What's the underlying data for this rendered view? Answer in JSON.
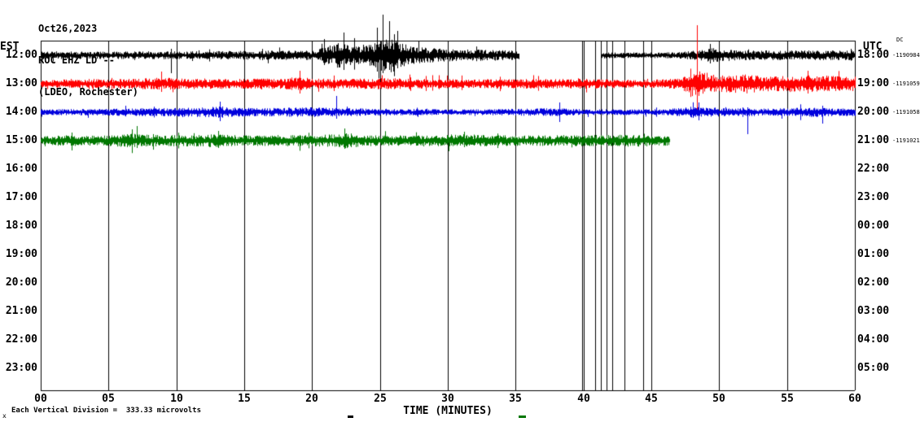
{
  "header": {
    "date": "Oct26,2023",
    "station": "ROC EHZ LD --",
    "location": "(LDEO, Rochester)"
  },
  "axes": {
    "left_label": "EST",
    "right_label": "UTC",
    "left_ticks": [
      "12:00",
      "13:00",
      "14:00",
      "15:00",
      "16:00",
      "17:00",
      "18:00",
      "19:00",
      "20:00",
      "21:00",
      "22:00",
      "23:00"
    ],
    "right_ticks": [
      "18:00",
      "19:00",
      "20:00",
      "21:00",
      "22:00",
      "23:00",
      "00:00",
      "01:00",
      "02:00",
      "03:00",
      "04:00",
      "05:00"
    ],
    "dc_label": "DC",
    "right_annotations": [
      "-1190984",
      "-1191059",
      "-1191058",
      "-1191021"
    ],
    "x_ticks": [
      "00",
      "05",
      "10",
      "15",
      "20",
      "25",
      "30",
      "35",
      "40",
      "45",
      "50",
      "55",
      "60"
    ],
    "x_label": "TIME (MINUTES)"
  },
  "footer": {
    "scale_note": "Each Vertical Division =  333.33 microvolts",
    "corner_mark": "x"
  },
  "colors": {
    "trace_hour_1": "#000000",
    "trace_hour_2": "#ff0000",
    "trace_hour_3": "#0000dd",
    "trace_hour_4": "#007700",
    "grid": "#000000",
    "background": "#ffffff"
  },
  "chart_data": {
    "type": "line",
    "title": "ROC EHZ LD -- (LDEO, Rochester) Oct26,2023 webicorder",
    "xlabel": "TIME (MINUTES)",
    "x_range": [
      0,
      60
    ],
    "minutes_per_row": 60,
    "grid_interval_minutes": 5,
    "scale_note": "Each Vertical Division = 333.33 microvolts",
    "glitch_vlines": {
      "color": "#000000",
      "minutes": [
        39.9,
        40.85,
        41.25,
        41.7,
        42.1,
        43.0,
        44.4
      ]
    },
    "rows": [
      {
        "est": "12:00",
        "utc": "18:00",
        "dc_offset": "-1190984",
        "color": "#000000",
        "seed": 11,
        "segments": [
          {
            "from": 0,
            "to": 35.2
          },
          {
            "from": 41.3,
            "to": 60
          }
        ],
        "envelope": [
          [
            0,
            5
          ],
          [
            4,
            4.5
          ],
          [
            8,
            5
          ],
          [
            12,
            5
          ],
          [
            16,
            5.5
          ],
          [
            20,
            6
          ],
          [
            21,
            10
          ],
          [
            21.8,
            16
          ],
          [
            22.5,
            13
          ],
          [
            23.5,
            11
          ],
          [
            24.5,
            14
          ],
          [
            25,
            20
          ],
          [
            25.8,
            22
          ],
          [
            26.5,
            15
          ],
          [
            27.5,
            11
          ],
          [
            28.5,
            9
          ],
          [
            30,
            8
          ],
          [
            32,
            7
          ],
          [
            34,
            6.5
          ],
          [
            35.2,
            6
          ],
          [
            41.3,
            4
          ],
          [
            43,
            3.5
          ],
          [
            45,
            3.5
          ],
          [
            47,
            4
          ],
          [
            47.8,
            5
          ],
          [
            48.6,
            7
          ],
          [
            49.5,
            9
          ],
          [
            50.5,
            7
          ],
          [
            52,
            6
          ],
          [
            54,
            6
          ],
          [
            56,
            6
          ],
          [
            58,
            6
          ],
          [
            60,
            6
          ]
        ],
        "spikes": [
          {
            "minute": 9.6,
            "up": 8,
            "down": 22
          },
          {
            "minute": 20.9,
            "up": 20,
            "down": 12
          },
          {
            "minute": 22.3,
            "up": 28,
            "down": 18
          },
          {
            "minute": 24.8,
            "up": 34,
            "down": 20
          },
          {
            "minute": 25.2,
            "up": 50,
            "down": 22
          },
          {
            "minute": 25.7,
            "up": 42,
            "down": 18
          },
          {
            "minute": 26.3,
            "up": 30,
            "down": 16
          },
          {
            "minute": 49.3,
            "up": 14,
            "down": 10
          }
        ]
      },
      {
        "est": "13:00",
        "utc": "19:00",
        "dc_offset": "-1191059",
        "color": "#ff0000",
        "seed": 22,
        "segments": [
          {
            "from": 0,
            "to": 60
          }
        ],
        "envelope": [
          [
            0,
            5
          ],
          [
            2,
            5.5
          ],
          [
            4,
            6
          ],
          [
            6,
            6
          ],
          [
            8,
            7
          ],
          [
            9,
            8
          ],
          [
            10,
            7
          ],
          [
            12,
            6.5
          ],
          [
            14,
            6
          ],
          [
            16,
            6.5
          ],
          [
            18,
            7
          ],
          [
            19,
            9
          ],
          [
            20,
            6.5
          ],
          [
            22,
            6
          ],
          [
            24,
            6.5
          ],
          [
            26,
            7
          ],
          [
            28,
            6
          ],
          [
            30,
            6
          ],
          [
            32,
            5.5
          ],
          [
            34,
            5.5
          ],
          [
            36,
            6
          ],
          [
            38,
            6
          ],
          [
            40,
            6
          ],
          [
            42,
            5.5
          ],
          [
            44,
            5
          ],
          [
            46,
            5.5
          ],
          [
            47,
            7
          ],
          [
            48,
            12
          ],
          [
            48.6,
            16
          ],
          [
            49.4,
            12
          ],
          [
            50,
            10
          ],
          [
            51,
            11
          ],
          [
            52,
            12
          ],
          [
            53,
            10
          ],
          [
            54,
            9
          ],
          [
            55,
            10
          ],
          [
            56,
            11
          ],
          [
            57,
            10
          ],
          [
            58,
            10
          ],
          [
            59,
            9
          ],
          [
            60,
            9
          ]
        ],
        "spikes": [
          {
            "minute": 8.9,
            "up": 15,
            "down": 10
          },
          {
            "minute": 19.1,
            "up": 16,
            "down": 12
          },
          {
            "minute": 48.35,
            "up": 72,
            "down": 38
          },
          {
            "minute": 56.5,
            "up": 16,
            "down": 12
          }
        ]
      },
      {
        "est": "14:00",
        "utc": "20:00",
        "dc_offset": "-1191058",
        "color": "#0000dd",
        "seed": 33,
        "segments": [
          {
            "from": 0,
            "to": 60
          }
        ],
        "envelope": [
          [
            0,
            3.5
          ],
          [
            3,
            4
          ],
          [
            6,
            4.5
          ],
          [
            9,
            5
          ],
          [
            12,
            6
          ],
          [
            13,
            7
          ],
          [
            14,
            6
          ],
          [
            16,
            5
          ],
          [
            18,
            5.5
          ],
          [
            20,
            6
          ],
          [
            22,
            5
          ],
          [
            24,
            4.5
          ],
          [
            26,
            4
          ],
          [
            28,
            4
          ],
          [
            30,
            3.5
          ],
          [
            32,
            3.5
          ],
          [
            34,
            4
          ],
          [
            36,
            4.5
          ],
          [
            38,
            5
          ],
          [
            40,
            3.5
          ],
          [
            42,
            3.5
          ],
          [
            44,
            3.5
          ],
          [
            46,
            4
          ],
          [
            47,
            5
          ],
          [
            48,
            7
          ],
          [
            49,
            6
          ],
          [
            50,
            5.5
          ],
          [
            51,
            5
          ],
          [
            52,
            5
          ],
          [
            53,
            4.5
          ],
          [
            54,
            4.5
          ],
          [
            55,
            5
          ],
          [
            56,
            5.5
          ],
          [
            57,
            6
          ],
          [
            58,
            5
          ],
          [
            59,
            4.5
          ],
          [
            60,
            5
          ]
        ],
        "spikes": [
          {
            "minute": 13.2,
            "up": 13,
            "down": 11
          },
          {
            "minute": 21.8,
            "up": 20,
            "down": 8
          },
          {
            "minute": 38.2,
            "up": 12,
            "down": 12
          },
          {
            "minute": 48.5,
            "up": 12,
            "down": 10
          },
          {
            "minute": 52.1,
            "up": 6,
            "down": 27
          },
          {
            "minute": 57.6,
            "up": 8,
            "down": 14
          }
        ]
      },
      {
        "est": "15:00",
        "utc": "21:00",
        "dc_offset": "-1191021",
        "color": "#007700",
        "seed": 44,
        "segments": [
          {
            "from": 0,
            "to": 46.3
          }
        ],
        "envelope": [
          [
            0,
            5
          ],
          [
            1,
            6
          ],
          [
            2,
            7
          ],
          [
            3,
            6
          ],
          [
            5,
            6.5
          ],
          [
            7,
            9
          ],
          [
            8,
            7
          ],
          [
            10,
            7
          ],
          [
            12,
            7.5
          ],
          [
            13,
            8.5
          ],
          [
            14,
            7
          ],
          [
            16,
            6.5
          ],
          [
            18,
            7
          ],
          [
            20,
            7
          ],
          [
            22,
            8
          ],
          [
            22.6,
            10
          ],
          [
            23.5,
            7
          ],
          [
            25,
            6.5
          ],
          [
            27,
            6.5
          ],
          [
            29,
            6.5
          ],
          [
            31,
            8
          ],
          [
            33,
            7
          ],
          [
            35,
            6.5
          ],
          [
            37,
            6.5
          ],
          [
            39,
            7
          ],
          [
            41,
            7
          ],
          [
            43,
            7.5
          ],
          [
            45,
            7
          ],
          [
            46.3,
            6
          ]
        ],
        "spikes": [
          {
            "minute": 2.3,
            "up": 10,
            "down": 12
          },
          {
            "minute": 7.1,
            "up": 18,
            "down": 9
          },
          {
            "minute": 13.1,
            "up": 12,
            "down": 9
          },
          {
            "minute": 22.4,
            "up": 15,
            "down": 10
          },
          {
            "minute": 31.2,
            "up": 11,
            "down": 8
          }
        ]
      }
    ]
  }
}
